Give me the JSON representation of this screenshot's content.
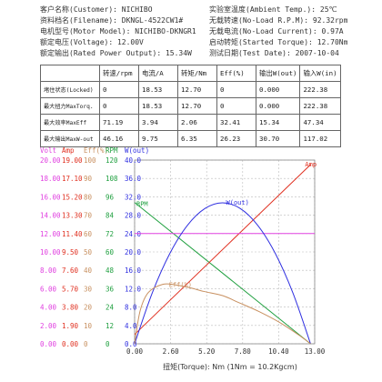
{
  "header": {
    "customer": "客户名称(Customer): NICHIBO",
    "filename": "资料档名(Filename): DKNGL-4522CW1#",
    "motor_model": "电机型号(Motor Model): NICHIBO-DKNGR1",
    "voltage": "额定电压(Voltage): 12.00V",
    "rated_output": "额定输出(Rated Power Output): 15.34W",
    "ambient_temp": "实验室温度(Ambient Temp.): 25℃",
    "noload_rpm": "无载转速(No-Load R.P.M): 92.32rpm",
    "noload_current": "无载电流(No-Load Current): 0.97A",
    "started_torque": "启动转矩(Started Torque): 12.70Nm",
    "test_date": "测试日期(Test Date): 2007-10-04"
  },
  "table": {
    "columns": [
      "转速/rpm",
      "电流/A",
      "转矩/Nm",
      "Eff(%)",
      "输出W(out)",
      "输入W(in)"
    ],
    "rows": [
      {
        "label": "堵住状态(Locked)",
        "values": [
          "0",
          "18.53",
          "12.70",
          "0",
          "0.000",
          "222.38"
        ]
      },
      {
        "label": "最大扭力MaxTorq.",
        "values": [
          "0",
          "18.53",
          "12.70",
          "0",
          "0.000",
          "222.38"
        ]
      },
      {
        "label": "最大效率MaxEff",
        "values": [
          "71.19",
          "3.94",
          "2.06",
          "32.41",
          "15.34",
          "47.34"
        ]
      },
      {
        "label": "最大输出MaxW-out",
        "values": [
          "46.16",
          "9.75",
          "6.35",
          "26.23",
          "30.70",
          "117.02"
        ]
      }
    ]
  },
  "chart_data": {
    "type": "line",
    "xlabel": "扭矩(Torque): Nm (1Nm = 10.2Kgcm)",
    "x_ticks": [
      "0.00",
      "2.60",
      "5.20",
      "7.80",
      "10.40",
      "13.00"
    ],
    "x_tick_values": [
      0,
      2.6,
      5.2,
      7.8,
      10.4,
      13.0
    ],
    "xlim": [
      0,
      13
    ],
    "axes": [
      {
        "name": "Volt",
        "color": "#e040e0",
        "ticks": [
          "20.00",
          "18.00",
          "16.00",
          "14.00",
          "12.00",
          "10.00",
          "8.00",
          "6.00",
          "4.00",
          "2.00",
          "0.00"
        ],
        "ylim": [
          0,
          20
        ]
      },
      {
        "name": "Amp",
        "color": "#e03020",
        "ticks": [
          "19.00",
          "17.10",
          "15.20",
          "13.30",
          "11.40",
          "9.50",
          "7.60",
          "5.70",
          "3.80",
          "1.90",
          "0.00"
        ],
        "ylim": [
          0,
          19
        ]
      },
      {
        "name": "Eff(%)",
        "color": "#c89060",
        "ticks": [
          "100",
          "90",
          "80",
          "70",
          "60",
          "50",
          "40",
          "30",
          "20",
          "10",
          "0"
        ],
        "ylim": [
          0,
          100
        ]
      },
      {
        "name": "RPM",
        "color": "#20a040",
        "ticks": [
          "120",
          "108",
          "96",
          "84",
          "72",
          "60",
          "48",
          "36",
          "24",
          "12",
          "0"
        ],
        "ylim": [
          0,
          120
        ]
      },
      {
        "name": "W(out)",
        "color": "#3030e0",
        "ticks": [
          "40.0",
          "36.0",
          "32.0",
          "28.0",
          "24.0",
          "20.0",
          "16.0",
          "12.0",
          "8.0",
          "4.0",
          "0.0"
        ],
        "ylim": [
          0,
          40
        ]
      }
    ],
    "series": [
      {
        "name": "RPM",
        "label": "RPM",
        "axis": "RPM",
        "color": "#20a040",
        "x": [
          0,
          12.7
        ],
        "y": [
          92.32,
          0
        ]
      },
      {
        "name": "Amp",
        "label": "Amp",
        "axis": "Amp",
        "color": "#e03020",
        "x": [
          0,
          12.7
        ],
        "y": [
          0.97,
          18.53
        ]
      },
      {
        "name": "Volt",
        "label": "",
        "axis": "Volt",
        "color": "#e040e0",
        "x": [
          0,
          13
        ],
        "y": [
          12,
          12
        ]
      },
      {
        "name": "W(out)",
        "label": "W(out)",
        "axis": "W(out)",
        "color": "#3030e0",
        "x": [
          0,
          1.27,
          2.54,
          3.81,
          5.08,
          6.35,
          7.62,
          8.89,
          10.16,
          11.43,
          12.7
        ],
        "y": [
          0,
          11.05,
          19.65,
          25.79,
          29.47,
          30.7,
          29.47,
          25.79,
          19.65,
          11.05,
          0
        ]
      },
      {
        "name": "Eff(%)",
        "label": "Eff(%)",
        "axis": "Eff(%)",
        "color": "#c89060",
        "x": [
          0,
          0.4,
          1.0,
          2.06,
          3.0,
          4.0,
          5.0,
          6.35,
          7.5,
          9.0,
          10.5,
          12.0,
          12.7
        ],
        "y": [
          0,
          18,
          28,
          32.41,
          32,
          30.5,
          28.5,
          26.23,
          22.5,
          17.5,
          11.5,
          4,
          0
        ]
      }
    ]
  }
}
